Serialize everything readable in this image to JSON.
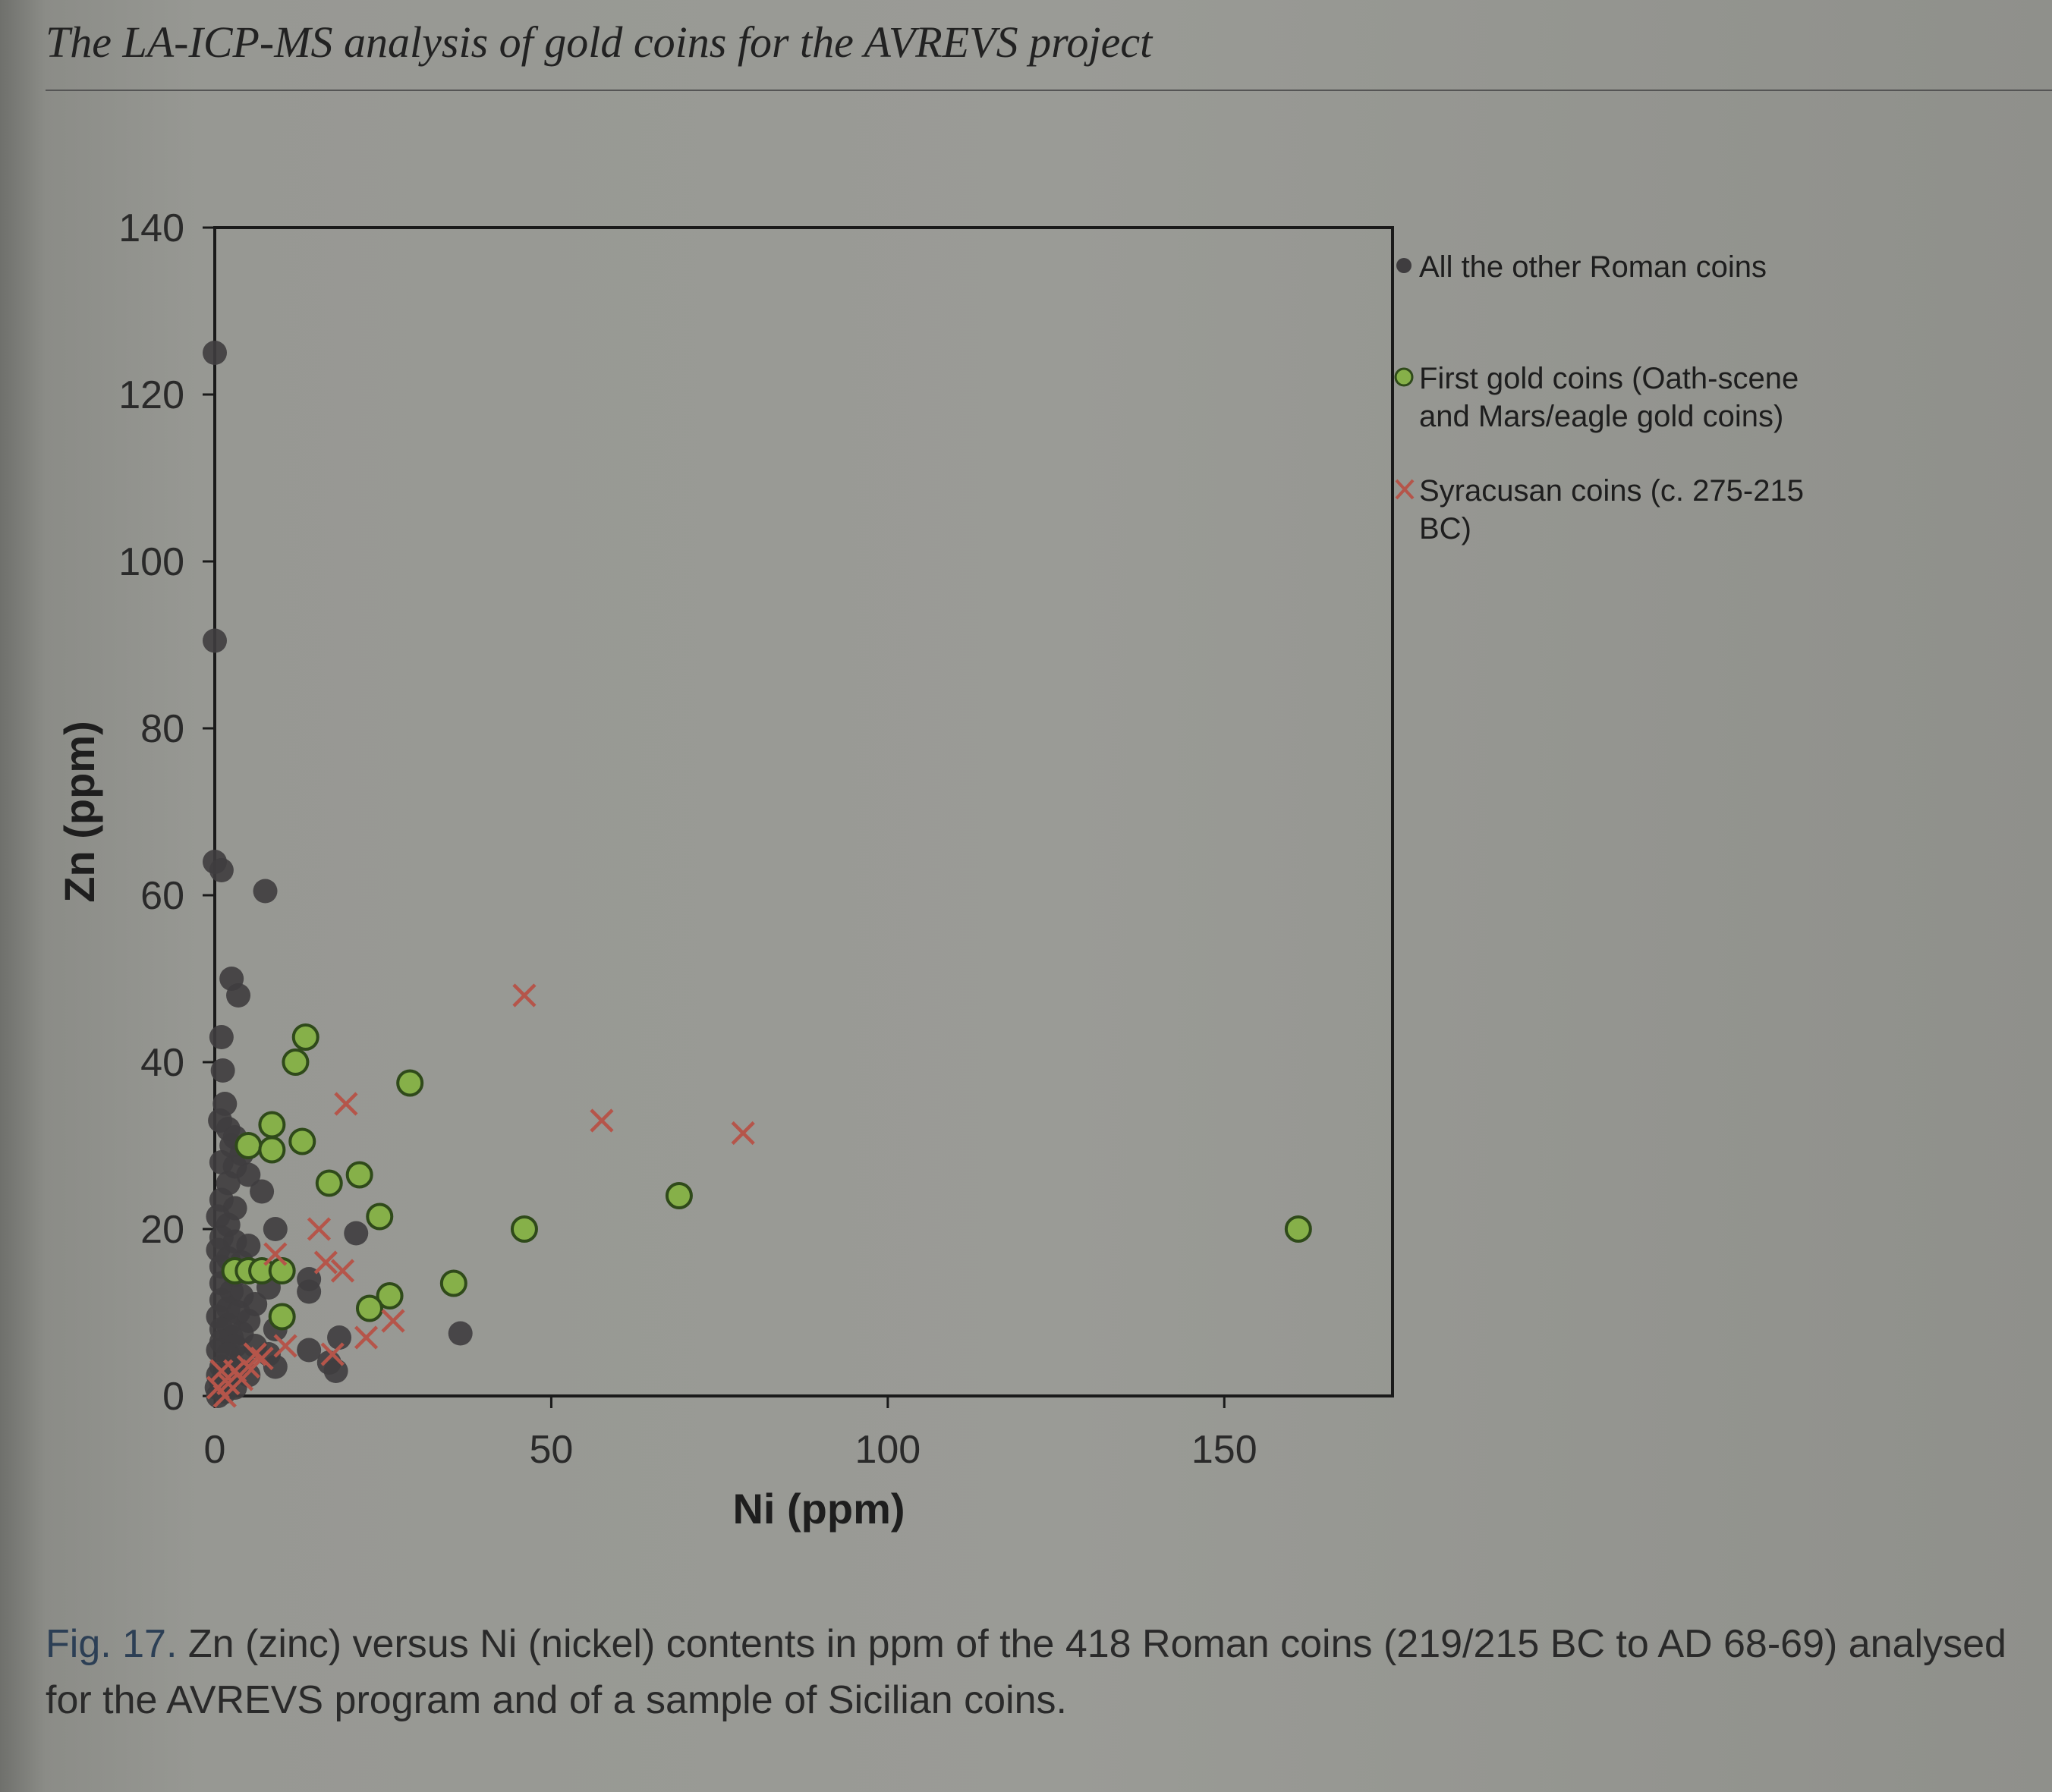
{
  "running_head": "The LA-ICP-MS analysis of gold coins for the AVREVS project",
  "caption": {
    "label": "Fig. 17.",
    "text": "Zn (zinc) versus Ni (nickel) contents in ppm of the 418 Roman coins (219/215 BC to AD 68-69) analysed for the AVREVS program and of a sample of Sicilian coins."
  },
  "colors": {
    "other_roman": "#3f3d3f",
    "first_gold_fill": "#86b049",
    "first_gold_edge": "#2f4a1a",
    "syracusan": "#b5554a"
  },
  "chart_data": {
    "type": "scatter",
    "xlabel": "Ni (ppm)",
    "ylabel": "Zn (ppm)",
    "xlim": [
      0,
      175
    ],
    "ylim": [
      0,
      140
    ],
    "xticks": [
      0,
      50,
      100,
      150
    ],
    "yticks": [
      0,
      20,
      40,
      60,
      80,
      100,
      120,
      140
    ],
    "legend_position": "right",
    "series": [
      {
        "name": "All the other Roman coins",
        "marker": "dot",
        "points": [
          [
            0,
            125
          ],
          [
            0,
            90.5
          ],
          [
            0,
            64
          ],
          [
            1,
            63
          ],
          [
            7.5,
            60.5
          ],
          [
            2.5,
            50
          ],
          [
            3.5,
            48
          ],
          [
            1,
            43
          ],
          [
            1.2,
            39
          ],
          [
            1.5,
            35
          ],
          [
            0.8,
            33
          ],
          [
            2,
            32
          ],
          [
            3,
            31
          ],
          [
            2.5,
            30
          ],
          [
            4,
            29
          ],
          [
            1,
            28
          ],
          [
            3,
            27.5
          ],
          [
            5,
            26.5
          ],
          [
            2,
            25.5
          ],
          [
            7,
            24.5
          ],
          [
            1,
            23.5
          ],
          [
            3,
            22.5
          ],
          [
            0.5,
            21.5
          ],
          [
            2,
            20.5
          ],
          [
            9,
            20
          ],
          [
            21,
            19.5
          ],
          [
            1,
            19
          ],
          [
            3,
            18.5
          ],
          [
            5,
            18
          ],
          [
            0.5,
            17.5
          ],
          [
            2,
            16.5
          ],
          [
            4,
            16
          ],
          [
            1,
            15.5
          ],
          [
            6,
            15
          ],
          [
            3,
            14.5
          ],
          [
            14,
            14
          ],
          [
            1,
            13.5
          ],
          [
            8,
            13
          ],
          [
            2.5,
            12.5
          ],
          [
            14,
            12.5
          ],
          [
            4,
            12
          ],
          [
            1,
            11.5
          ],
          [
            6,
            11
          ],
          [
            2,
            10.5
          ],
          [
            3.5,
            10
          ],
          [
            0.5,
            9.5
          ],
          [
            5,
            9
          ],
          [
            2,
            8.5
          ],
          [
            9,
            8
          ],
          [
            1,
            8
          ],
          [
            4,
            7.5
          ],
          [
            36.5,
            7.5
          ],
          [
            18.5,
            7
          ],
          [
            2.5,
            7
          ],
          [
            1,
            6.5
          ],
          [
            6,
            6
          ],
          [
            3,
            6
          ],
          [
            14,
            5.5
          ],
          [
            0.5,
            5.5
          ],
          [
            8,
            5
          ],
          [
            2,
            5
          ],
          [
            4,
            4.5
          ],
          [
            17,
            4
          ],
          [
            9,
            3.5
          ],
          [
            1,
            3.5
          ],
          [
            3,
            3
          ],
          [
            18,
            3
          ],
          [
            5,
            2.5
          ],
          [
            0.5,
            2.5
          ],
          [
            2,
            2
          ],
          [
            1,
            1.5
          ],
          [
            0.3,
            1
          ],
          [
            3,
            1
          ],
          [
            1.5,
            0.5
          ],
          [
            0.5,
            0
          ]
        ]
      },
      {
        "name": "First gold coins (Oath-scene and Mars/eagle gold coins)",
        "marker": "circle",
        "points": [
          [
            13.5,
            43
          ],
          [
            12,
            40
          ],
          [
            29,
            37.5
          ],
          [
            8.5,
            32.5
          ],
          [
            5,
            30
          ],
          [
            13,
            30.5
          ],
          [
            8.5,
            29.5
          ],
          [
            17,
            25.5
          ],
          [
            21.5,
            26.5
          ],
          [
            24.5,
            21.5
          ],
          [
            46,
            20
          ],
          [
            69,
            24
          ],
          [
            161,
            20
          ],
          [
            3,
            15
          ],
          [
            5,
            15
          ],
          [
            7,
            15
          ],
          [
            10,
            15
          ],
          [
            35.5,
            13.5
          ],
          [
            26,
            12
          ],
          [
            23,
            10.5
          ],
          [
            10,
            9.5
          ]
        ]
      },
      {
        "name": "Syracusan coins (c. 275-215 BC)",
        "marker": "x",
        "points": [
          [
            46,
            48
          ],
          [
            57.5,
            33
          ],
          [
            78.5,
            31.5
          ],
          [
            19.5,
            35
          ],
          [
            15.5,
            20
          ],
          [
            16.5,
            16
          ],
          [
            19,
            15
          ],
          [
            9,
            17
          ],
          [
            26.5,
            9
          ],
          [
            22.5,
            7
          ],
          [
            10.5,
            6
          ],
          [
            17.5,
            5
          ],
          [
            7,
            4.5
          ],
          [
            5,
            3.5
          ],
          [
            3,
            3
          ],
          [
            1,
            3
          ],
          [
            0.5,
            1
          ],
          [
            2,
            1.5
          ],
          [
            4,
            2
          ],
          [
            1.5,
            0
          ],
          [
            6,
            5
          ]
        ]
      }
    ]
  }
}
